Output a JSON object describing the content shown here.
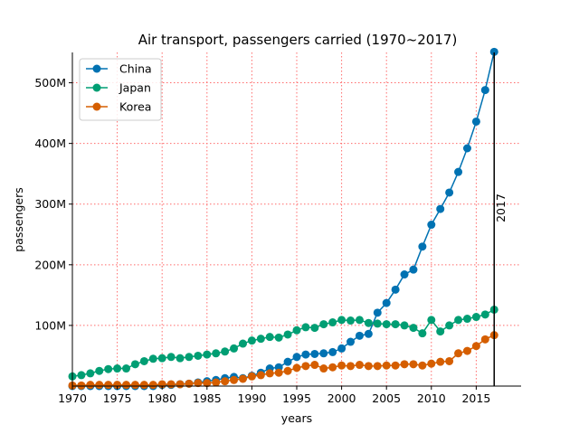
{
  "chart_data": {
    "type": "line",
    "title": "Air transport, passengers carried (1970~2017)",
    "xlabel": "years",
    "ylabel": "passengers",
    "xlim": [
      1970,
      2020
    ],
    "ylim": [
      0,
      550000000
    ],
    "x_ticks": [
      1970,
      1975,
      1980,
      1985,
      1990,
      1995,
      2000,
      2005,
      2010,
      2015
    ],
    "y_ticks": [
      {
        "value": 100000000,
        "label": "100M"
      },
      {
        "value": 200000000,
        "label": "200M"
      },
      {
        "value": 300000000,
        "label": "300M"
      },
      {
        "value": 400000000,
        "label": "400M"
      },
      {
        "value": 500000000,
        "label": "500M"
      }
    ],
    "grid": true,
    "legend_position": "top-left",
    "vertical_marker": {
      "x": 2017,
      "label": "2017"
    },
    "x": [
      1970,
      1971,
      1972,
      1973,
      1974,
      1975,
      1976,
      1977,
      1978,
      1979,
      1980,
      1981,
      1982,
      1983,
      1984,
      1985,
      1986,
      1987,
      1988,
      1989,
      1990,
      1991,
      1992,
      1993,
      1994,
      1995,
      1996,
      1997,
      1998,
      1999,
      2000,
      2001,
      2002,
      2003,
      2004,
      2005,
      2006,
      2007,
      2008,
      2009,
      2010,
      2011,
      2012,
      2013,
      2014,
      2015,
      2016,
      2017
    ],
    "series": [
      {
        "name": "China",
        "color": "#0072b2",
        "values": [
          0,
          0,
          0,
          0,
          0,
          0,
          0,
          0,
          0,
          0,
          2000000,
          2000000,
          3000000,
          4000000,
          6000000,
          8000000,
          10000000,
          13000000,
          15000000,
          13000000,
          17000000,
          22000000,
          29000000,
          31000000,
          40000000,
          48000000,
          52000000,
          53000000,
          54000000,
          56000000,
          62000000,
          73000000,
          83000000,
          86000000,
          121000000,
          137000000,
          159000000,
          184000000,
          192000000,
          230000000,
          266000000,
          292000000,
          319000000,
          353000000,
          392000000,
          436000000,
          488000000,
          551000000
        ]
      },
      {
        "name": "Japan",
        "color": "#009e73",
        "values": [
          16000000,
          18000000,
          21000000,
          25000000,
          28000000,
          29000000,
          29000000,
          36000000,
          41000000,
          45000000,
          46000000,
          48000000,
          46000000,
          48000000,
          50000000,
          52000000,
          54000000,
          57000000,
          62000000,
          70000000,
          75000000,
          78000000,
          81000000,
          80000000,
          85000000,
          92000000,
          97000000,
          96000000,
          102000000,
          105000000,
          109000000,
          108000000,
          109000000,
          104000000,
          103000000,
          102000000,
          102000000,
          100000000,
          96000000,
          87000000,
          109000000,
          90000000,
          100000000,
          109000000,
          111000000,
          114000000,
          118000000,
          126000000
        ]
      },
      {
        "name": "Korea",
        "color": "#d55e00",
        "values": [
          1000000,
          1000000,
          2000000,
          2000000,
          2000000,
          2000000,
          2000000,
          2000000,
          2000000,
          2000000,
          3000000,
          3000000,
          3000000,
          4000000,
          5000000,
          5000000,
          6000000,
          8000000,
          10000000,
          12000000,
          16000000,
          18000000,
          21000000,
          22000000,
          25000000,
          30000000,
          33000000,
          35000000,
          29000000,
          31000000,
          34000000,
          33000000,
          35000000,
          33000000,
          33000000,
          34000000,
          34000000,
          36000000,
          36000000,
          34000000,
          37000000,
          40000000,
          41000000,
          54000000,
          58000000,
          66000000,
          77000000,
          84000000
        ]
      }
    ]
  }
}
